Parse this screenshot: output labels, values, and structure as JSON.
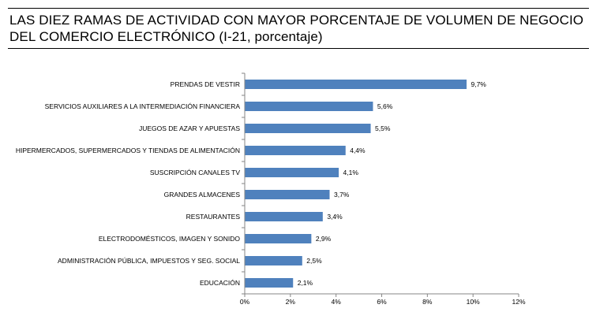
{
  "title": "LAS DIEZ RAMAS DE ACTIVIDAD CON MAYOR PORCENTAJE DE VOLUMEN DE NEGOCIO DEL COMERCIO ELECTRÓNICO (I-21, porcentaje)",
  "chart_data": {
    "type": "bar",
    "orientation": "horizontal",
    "categories": [
      "PRENDAS DE VESTIR",
      "SERVICIOS AUXILIARES A LA INTERMEDIACIÓN FINANCIERA",
      "JUEGOS DE AZAR Y APUESTAS",
      "HIPERMERCADOS, SUPERMERCADOS Y TIENDAS DE ALIMENTACIÓN",
      "SUSCRIPCIÓN CANALES TV",
      "GRANDES ALMACENES",
      "RESTAURANTES",
      "ELECTRODOMÉSTICOS,  IMAGEN Y SONIDO",
      "ADMINISTRACIÓN PÚBLICA, IMPUESTOS Y SEG. SOCIAL",
      "EDUCACIÓN"
    ],
    "values": [
      9.7,
      5.6,
      5.5,
      4.4,
      4.1,
      3.7,
      3.4,
      2.9,
      2.5,
      2.1
    ],
    "value_labels": [
      "9,7%",
      "5,6%",
      "5,5%",
      "4,4%",
      "4,1%",
      "3,7%",
      "3,4%",
      "2,9%",
      "2,5%",
      "2,1%"
    ],
    "xlim": [
      0,
      12
    ],
    "xticks": [
      0,
      2,
      4,
      6,
      8,
      10,
      12
    ],
    "xtick_labels": [
      "0%",
      "2%",
      "4%",
      "6%",
      "8%",
      "10%",
      "12%"
    ],
    "bar_color": "#4f81bd",
    "grid": false,
    "legend": "none"
  }
}
